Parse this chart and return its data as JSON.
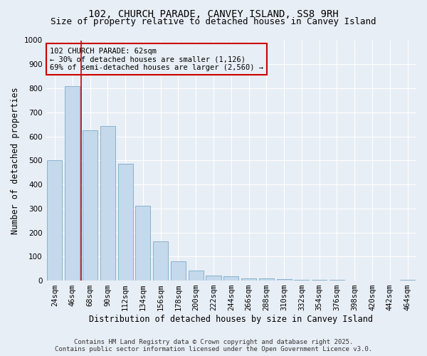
{
  "title": "102, CHURCH PARADE, CANVEY ISLAND, SS8 9RH",
  "subtitle": "Size of property relative to detached houses in Canvey Island",
  "xlabel": "Distribution of detached houses by size in Canvey Island",
  "ylabel": "Number of detached properties",
  "categories": [
    "24sqm",
    "46sqm",
    "68sqm",
    "90sqm",
    "112sqm",
    "134sqm",
    "156sqm",
    "178sqm",
    "200sqm",
    "222sqm",
    "244sqm",
    "266sqm",
    "288sqm",
    "310sqm",
    "332sqm",
    "354sqm",
    "376sqm",
    "398sqm",
    "420sqm",
    "442sqm",
    "464sqm"
  ],
  "values": [
    500,
    810,
    625,
    643,
    485,
    312,
    163,
    80,
    43,
    22,
    18,
    10,
    8,
    5,
    4,
    3,
    3,
    1,
    1,
    0,
    2
  ],
  "bar_color": "#c5d9ec",
  "bar_edge_color": "#7aaac8",
  "bg_color": "#e8eef5",
  "grid_color": "#ffffff",
  "vline_color": "#cc0000",
  "vline_x": 1.5,
  "annotation_text": "102 CHURCH PARADE: 62sqm\n← 30% of detached houses are smaller (1,126)\n69% of semi-detached houses are larger (2,560) →",
  "annotation_box_color": "#cc0000",
  "ylim": [
    0,
    1000
  ],
  "yticks": [
    0,
    100,
    200,
    300,
    400,
    500,
    600,
    700,
    800,
    900,
    1000
  ],
  "footer_line1": "Contains HM Land Registry data © Crown copyright and database right 2025.",
  "footer_line2": "Contains public sector information licensed under the Open Government Licence v3.0.",
  "title_fontsize": 10,
  "subtitle_fontsize": 9,
  "xlabel_fontsize": 8.5,
  "ylabel_fontsize": 8.5,
  "tick_fontsize": 7.5,
  "annotation_fontsize": 7.5,
  "footer_fontsize": 6.5
}
